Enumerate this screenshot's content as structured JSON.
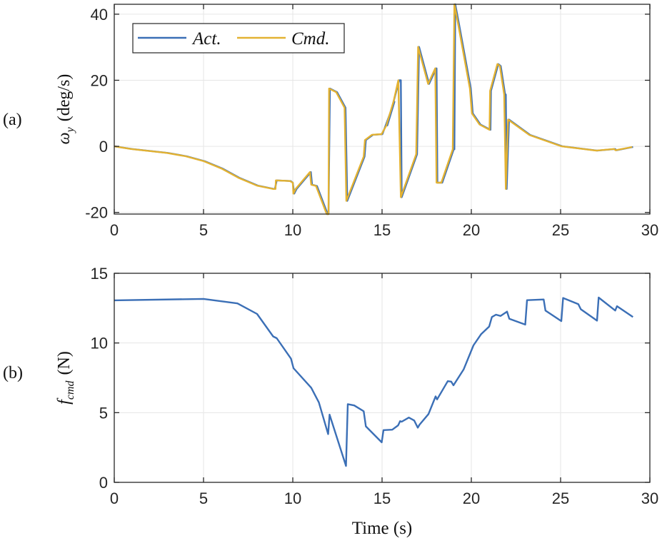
{
  "chart_data": [
    {
      "type": "line",
      "panel_label": "(a)",
      "ylabel": "ω_y (deg/s)",
      "ylabel_parts": {
        "symbol": "ω",
        "subscript": "y",
        "unit": "(deg/s)"
      },
      "xlabel": "",
      "xlim": [
        0,
        30
      ],
      "ylim": [
        -20.5,
        43
      ],
      "xticks": [
        0,
        5,
        10,
        15,
        20,
        25,
        30
      ],
      "yticks": [
        -20,
        0,
        20,
        40
      ],
      "grid": true,
      "legend": {
        "placement": "top-left",
        "entries": [
          "Act.",
          "Cmd."
        ]
      },
      "series": [
        {
          "name": "Act.",
          "color": "#3b6fb6",
          "x": [
            0,
            0.99,
            2.99,
            4.05,
            5.06,
            6.05,
            7.0,
            8.05,
            8.95,
            9.0,
            9.1,
            9.88,
            10.0,
            10.08,
            10.21,
            11.01,
            11.08,
            11.35,
            11.95,
            12.0,
            12.08,
            12.48,
            12.95,
            13.05,
            14.02,
            14.09,
            14.49,
            15.02,
            15.69,
            15.29,
            15.96,
            16.05,
            16.1,
            16.96,
            17.07,
            17.63,
            18.03,
            18.05,
            18.1,
            18.37,
            19.01,
            19.05,
            19.1,
            19.3,
            19.97,
            20.08,
            20.51,
            21.07,
            21.1,
            21.51,
            21.65,
            21.89,
            21.93,
            21.98,
            22.11,
            23.31,
            25.11,
            27.05,
            28.05,
            28.13,
            29.06
          ],
          "y": [
            0,
            -0.8,
            -2.0,
            -3.0,
            -4.5,
            -6.7,
            -9.5,
            -11.9,
            -12.9,
            -12.9,
            -10.3,
            -10.5,
            -11.0,
            -14.3,
            -12.9,
            -7.8,
            -11.6,
            -12.0,
            -20.8,
            -21,
            17.5,
            16.4,
            11.7,
            -16.5,
            -3.1,
            1.9,
            3.5,
            3.7,
            13.5,
            6.3,
            20,
            20,
            -15.4,
            -2.4,
            30.1,
            18.9,
            23.6,
            23.6,
            -11.0,
            -11.0,
            -0.9,
            -0.9,
            43.1,
            37.3,
            17.5,
            10.0,
            6.6,
            5.0,
            16.8,
            24.9,
            24.3,
            15.7,
            15.7,
            -12.9,
            8.1,
            3.4,
            0,
            -1.3,
            -0.8,
            -1.2,
            -0.2
          ]
        },
        {
          "name": "Cmd.",
          "color": "#e3b232",
          "x": [
            0,
            0.94,
            2.94,
            4.0,
            5.01,
            6.0,
            6.95,
            8.0,
            8.9,
            9.03,
            9.05,
            9.83,
            10.0,
            10.03,
            10.16,
            10.96,
            11.03,
            11.3,
            11.9,
            12.0,
            12.03,
            12.43,
            12.9,
            13.0,
            13.97,
            14.04,
            14.44,
            14.97,
            15.24,
            15.64,
            15.91,
            16.05,
            16.91,
            17.02,
            17.58,
            17.98,
            18.05,
            18.32,
            18.96,
            19.05,
            19.25,
            19.92,
            20.03,
            20.46,
            21.02,
            21.05,
            21.46,
            21.6,
            21.84,
            21.93,
            22.06,
            23.26,
            25.06,
            27.0,
            28.0,
            28.08,
            29.01
          ],
          "y": [
            0,
            -0.8,
            -2.0,
            -3.0,
            -4.5,
            -6.7,
            -9.5,
            -11.9,
            -12.9,
            -12.9,
            -10.3,
            -10.5,
            -11.0,
            -14.3,
            -12.9,
            -7.8,
            -11.6,
            -12.0,
            -20.8,
            -21,
            17.5,
            16.4,
            11.7,
            -16.5,
            -3.1,
            1.9,
            3.5,
            3.7,
            6.3,
            13.5,
            20,
            -15.4,
            -2.4,
            30.1,
            18.9,
            23.6,
            -11.0,
            -11.0,
            -0.9,
            43.1,
            37.3,
            17.5,
            10.0,
            6.6,
            5.0,
            16.8,
            24.9,
            24.3,
            15.7,
            -12.9,
            8.1,
            3.4,
            0,
            -1.3,
            -0.8,
            -1.2,
            -0.2
          ]
        }
      ]
    },
    {
      "type": "line",
      "panel_label": "(b)",
      "ylabel": "f_cmd (N)",
      "ylabel_parts": {
        "symbol": "f",
        "subscript": "cmd",
        "unit": "(N)"
      },
      "xlabel": "Time (s)",
      "xlim": [
        0,
        30
      ],
      "ylim": [
        0,
        15
      ],
      "xticks": [
        0,
        5,
        10,
        15,
        20,
        25,
        30
      ],
      "yticks": [
        0,
        5,
        10,
        15
      ],
      "grid": true,
      "series": [
        {
          "color": "#3b6fb6",
          "x": [
            0,
            5,
            6.9,
            8.0,
            8.9,
            9.1,
            9.9,
            10.04,
            11.03,
            11.46,
            11.98,
            12.06,
            12.98,
            13.08,
            13.44,
            13.97,
            14.09,
            14.98,
            15.08,
            15.57,
            15.9,
            16.01,
            16.1,
            16.5,
            16.8,
            17.0,
            17.1,
            17.6,
            18.0,
            18.08,
            18.68,
            18.87,
            19.0,
            19.57,
            20.12,
            20.55,
            21.0,
            21.15,
            21.38,
            21.64,
            22.0,
            22.13,
            23.02,
            23.12,
            24.05,
            24.15,
            25.04,
            25.14,
            25.99,
            26.13,
            27.04,
            27.13,
            28.06,
            28.16,
            29.05
          ],
          "y": [
            13.06,
            13.16,
            12.84,
            12.08,
            10.47,
            10.34,
            8.87,
            8.19,
            6.79,
            5.74,
            3.46,
            4.86,
            1.18,
            5.61,
            5.52,
            5.1,
            4.02,
            2.87,
            3.75,
            3.78,
            4.09,
            4.39,
            4.35,
            4.65,
            4.44,
            3.92,
            4.14,
            4.9,
            6.17,
            5.95,
            7.26,
            7.23,
            6.96,
            8.11,
            9.83,
            10.64,
            11.18,
            11.86,
            12.03,
            11.94,
            12.25,
            11.74,
            11.32,
            13.07,
            13.12,
            12.33,
            11.57,
            13.23,
            12.79,
            12.42,
            11.6,
            13.26,
            12.33,
            12.64,
            11.86
          ]
        }
      ]
    }
  ]
}
